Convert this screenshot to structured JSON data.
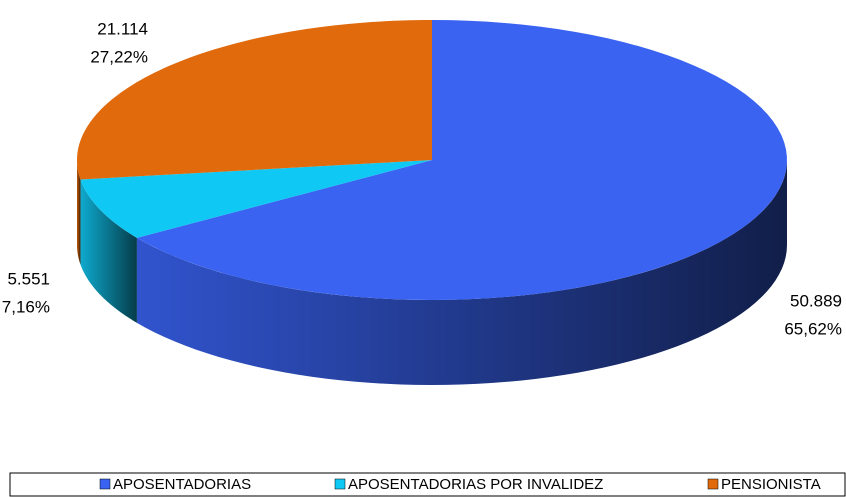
{
  "chart_data": {
    "type": "pie3d",
    "categories": [
      "APOSENTADORIAS",
      "APOSENTADORIAS POR INVALIDEZ",
      "PENSIONISTA"
    ],
    "values": [
      50889,
      5551,
      21114
    ],
    "value_labels": [
      "50.889",
      "5.551",
      "21.114"
    ],
    "percents": [
      65.62,
      7.16,
      27.22
    ],
    "percent_labels": [
      "65,62%",
      "7,16%",
      "27,22%"
    ],
    "colors": [
      "#3a63f2",
      "#10c8f4",
      "#e06a0c"
    ],
    "legend": "bottom"
  }
}
